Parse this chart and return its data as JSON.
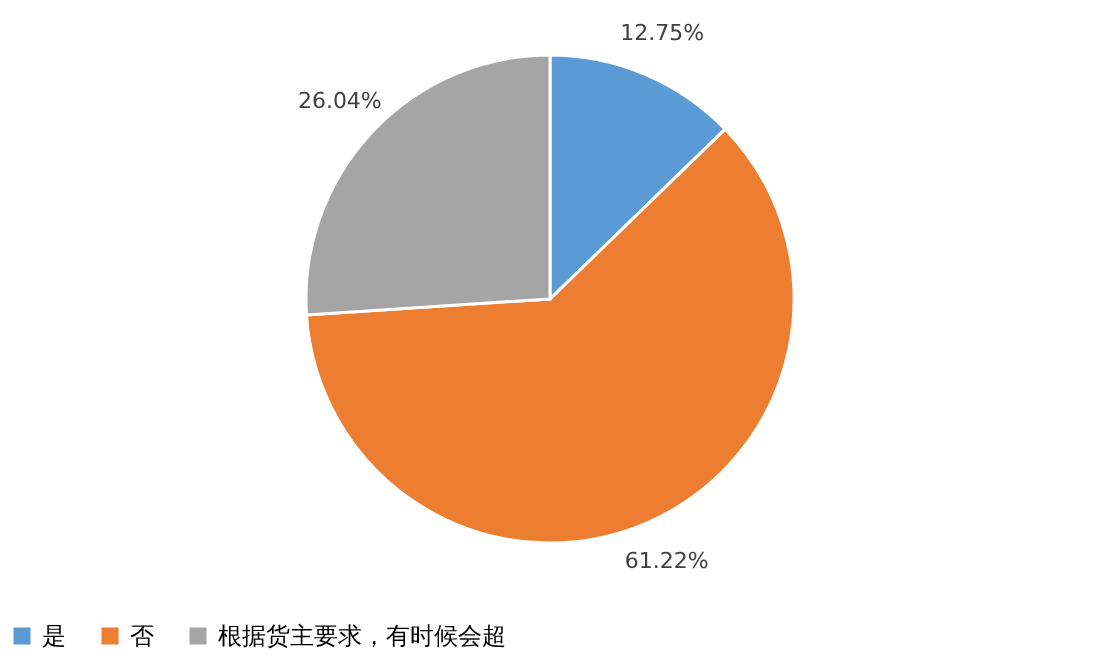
{
  "chart_data": {
    "type": "pie",
    "categories": [
      "是",
      "否",
      "根据货主要求，有时候会超"
    ],
    "values": [
      12.75,
      61.22,
      26.04
    ],
    "colors": [
      "#5b9bd5",
      "#ed7d31",
      "#a5a5a5"
    ],
    "value_labels": [
      "12.75%",
      "61.22%",
      "26.04%"
    ],
    "legend": "bottom"
  }
}
